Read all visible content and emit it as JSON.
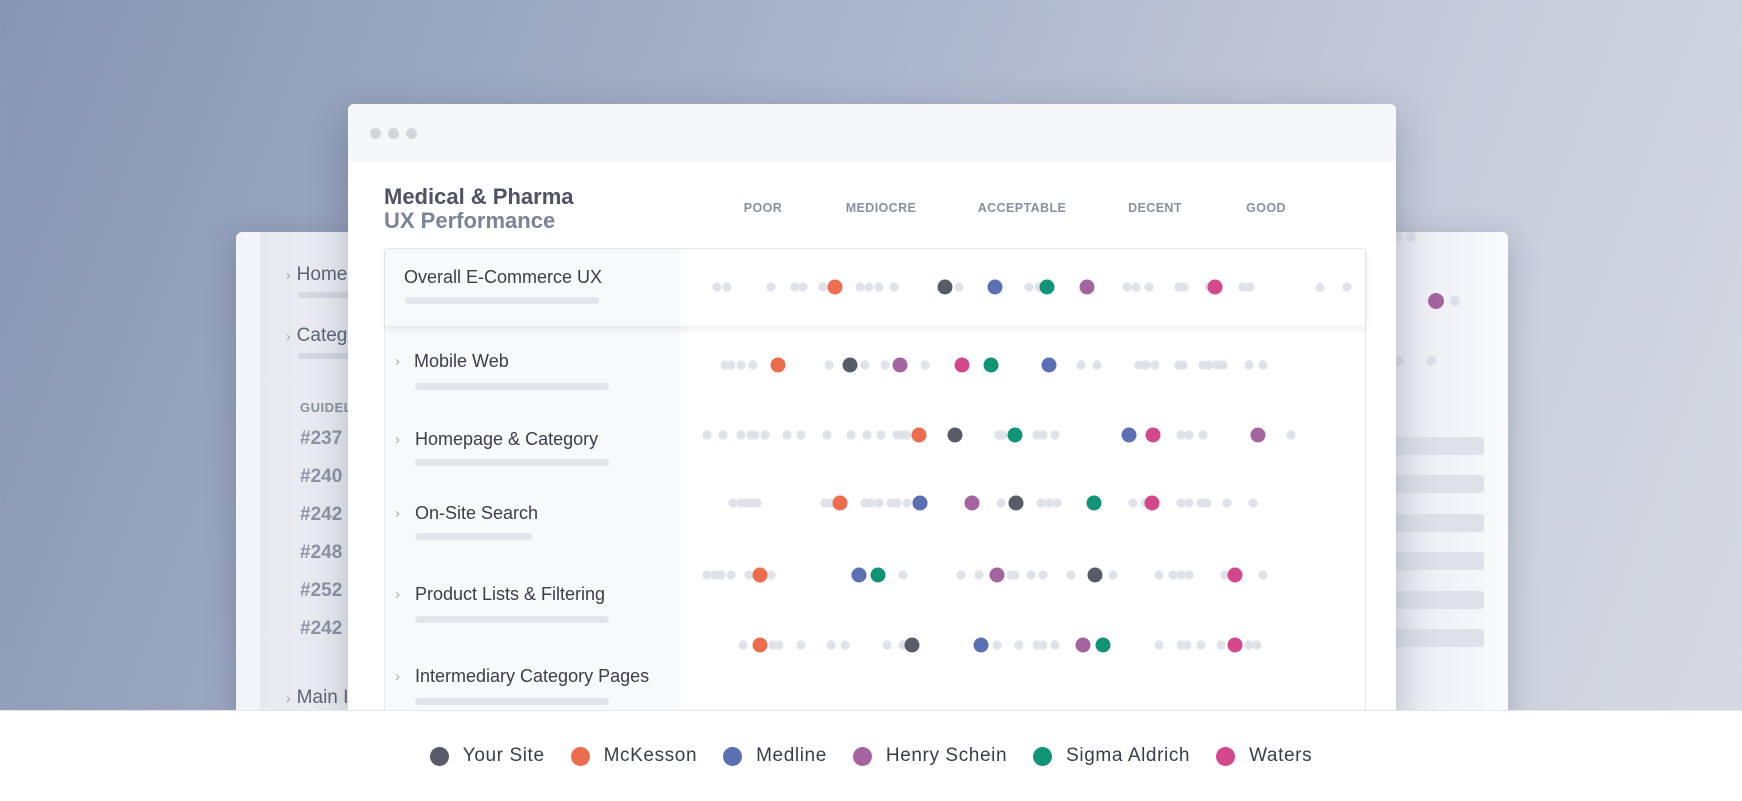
{
  "background_window": {
    "nav_items": [
      {
        "label": "Home"
      },
      {
        "label": "Categ"
      }
    ],
    "section_label": "GUIDEL",
    "guidelines": [
      "#237",
      "#240",
      "#242",
      "#248",
      "#252",
      "#242"
    ],
    "bottom_item": "Main I"
  },
  "main": {
    "title_line1": "Medical & Pharma",
    "title_line2": "UX Performance",
    "scale": [
      "POOR",
      "MEDIOCRE",
      "ACCEPTABLE",
      "DECENT",
      "GOOD"
    ],
    "rows": [
      {
        "label": "Overall E-Commerce UX"
      },
      {
        "label": "Mobile Web"
      },
      {
        "label": "Homepage & Category"
      },
      {
        "label": "On-Site Search"
      },
      {
        "label": "Product Lists & Filtering"
      },
      {
        "label": "Intermediary Category Pages"
      }
    ]
  },
  "legend": [
    {
      "name": "Your Site",
      "color": "#585b68"
    },
    {
      "name": "McKesson",
      "color": "#ec6d4d"
    },
    {
      "name": "Medline",
      "color": "#5b6fb3"
    },
    {
      "name": "Henry Schein",
      "color": "#a3649f"
    },
    {
      "name": "Sigma Aldrich",
      "color": "#0f9475"
    },
    {
      "name": "Waters",
      "color": "#d4478a"
    }
  ]
}
